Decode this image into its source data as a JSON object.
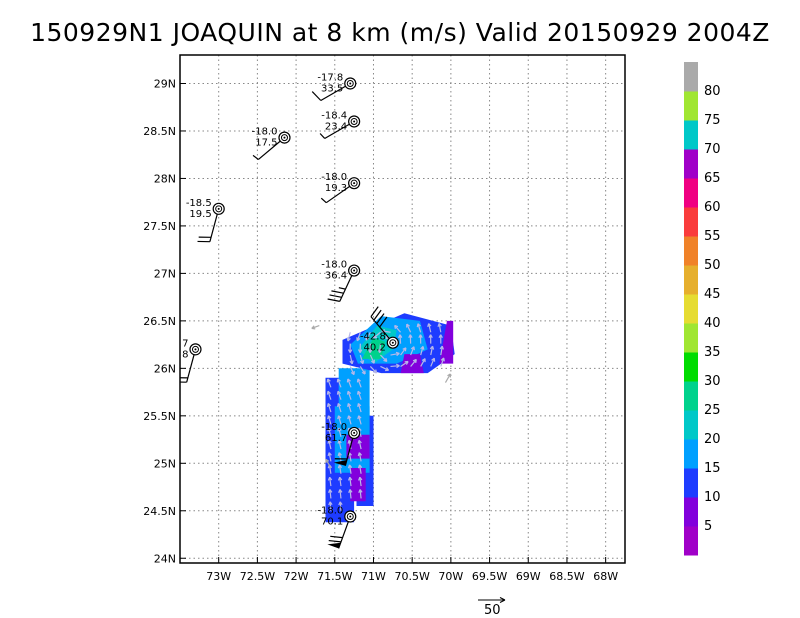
{
  "title": "150929N1 JOAQUIN at 8 km (m/s) Valid 20150929 2004Z",
  "map": {
    "lon_range": [
      -73.5,
      -67.75
    ],
    "lat_range": [
      23.95,
      29.3
    ],
    "lon_ticks": [
      {
        "v": -73,
        "label": "73W"
      },
      {
        "v": -72.5,
        "label": "72.5W"
      },
      {
        "v": -72,
        "label": "72W"
      },
      {
        "v": -71.5,
        "label": "71.5W"
      },
      {
        "v": -71,
        "label": "71W"
      },
      {
        "v": -70.5,
        "label": "70.5W"
      },
      {
        "v": -70,
        "label": "70W"
      },
      {
        "v": -69.5,
        "label": "69.5W"
      },
      {
        "v": -69,
        "label": "69W"
      },
      {
        "v": -68.5,
        "label": "68.5W"
      },
      {
        "v": -68,
        "label": "68W"
      }
    ],
    "lat_ticks": [
      {
        "v": 24,
        "label": "24N"
      },
      {
        "v": 24.5,
        "label": "24.5N"
      },
      {
        "v": 25,
        "label": "25N"
      },
      {
        "v": 25.5,
        "label": "25.5N"
      },
      {
        "v": 26,
        "label": "26N"
      },
      {
        "v": 26.5,
        "label": "26.5N"
      },
      {
        "v": 27,
        "label": "27N"
      },
      {
        "v": 27.5,
        "label": "27.5N"
      },
      {
        "v": 28,
        "label": "28N"
      },
      {
        "v": 28.5,
        "label": "28.5N"
      },
      {
        "v": 29,
        "label": "29N"
      }
    ],
    "grid": "dotted"
  },
  "stations": [
    {
      "lon": -71.3,
      "lat": 29.0,
      "temp": "-17.8",
      "speed": "33.5",
      "wdir": 240,
      "flags": 0,
      "full": 1,
      "half": 0
    },
    {
      "lon": -71.25,
      "lat": 28.6,
      "temp": "-18.4",
      "speed": "23.4",
      "wdir": 240,
      "flags": 0,
      "full": 0,
      "half": 1
    },
    {
      "lon": -72.15,
      "lat": 28.43,
      "temp": "-18.0",
      "speed": "17.5",
      "wdir": 230,
      "flags": 0,
      "full": 0,
      "half": 1
    },
    {
      "lon": -71.25,
      "lat": 27.95,
      "temp": "-18.0",
      "speed": "19.3",
      "wdir": 235,
      "flags": 0,
      "full": 0,
      "half": 1
    },
    {
      "lon": -73.0,
      "lat": 27.68,
      "temp": "-18.5",
      "speed": "19.5",
      "wdir": 195,
      "flags": 0,
      "full": 2,
      "half": 0
    },
    {
      "lon": -71.25,
      "lat": 27.03,
      "temp": "-18.0",
      "speed": "36.4",
      "wdir": 205,
      "flags": 0,
      "full": 3,
      "half": 1
    },
    {
      "lon": -73.3,
      "lat": 26.2,
      "temp": "7",
      "speed": "8",
      "wdir": 195,
      "flags": 0,
      "full": 2,
      "half": 0
    },
    {
      "lon": -70.75,
      "lat": 26.27,
      "temp": "-42.8",
      "speed": "40.2",
      "wdir": 320,
      "flags": 0,
      "full": 4,
      "half": 0
    },
    {
      "lon": -71.25,
      "lat": 25.32,
      "temp": "-18.0",
      "speed": "61.7",
      "wdir": 195,
      "flags": 1,
      "full": 1,
      "half": 0
    },
    {
      "lon": -71.3,
      "lat": 24.44,
      "temp": "-18.0",
      "speed": "70.1",
      "wdir": 200,
      "flags": 1,
      "full": 2,
      "half": 0
    }
  ],
  "vector_legend": {
    "value": "50"
  },
  "colorbar": {
    "labels": [
      "5",
      "10",
      "15",
      "20",
      "25",
      "30",
      "35",
      "40",
      "45",
      "50",
      "55",
      "60",
      "65",
      "70",
      "75",
      "80"
    ],
    "colors": [
      "#a000c8",
      "#8200dc",
      "#1e3cff",
      "#00a0ff",
      "#00c8c8",
      "#00d28c",
      "#00dc00",
      "#a0e632",
      "#e6dc32",
      "#e6af2d",
      "#f08228",
      "#fa3c3c",
      "#f00082",
      "#a000c8",
      "#00c8c8",
      "#a0e632",
      "#aaaaaa"
    ]
  }
}
